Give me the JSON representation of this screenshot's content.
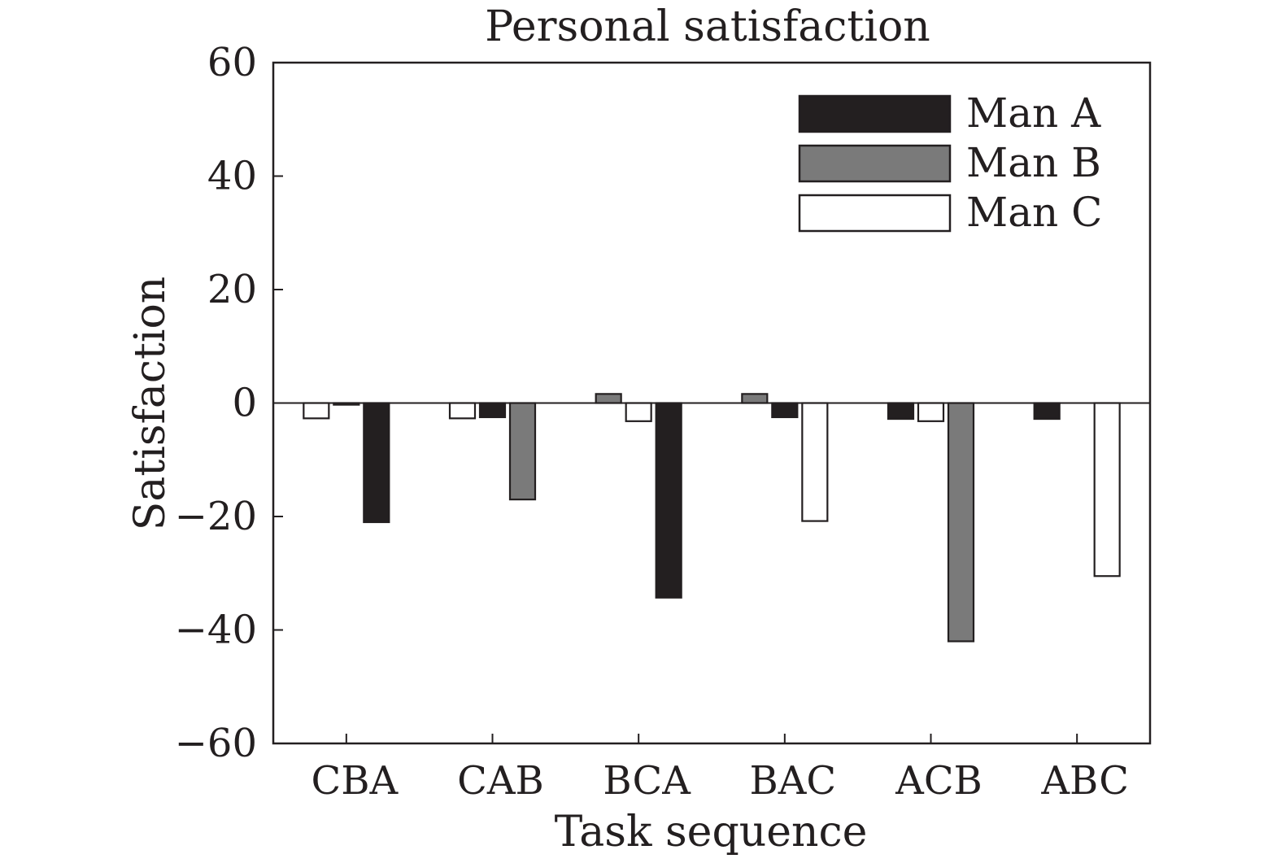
{
  "chart_data": {
    "type": "bar",
    "title": "Personal satisfaction",
    "xlabel": "Task sequence",
    "ylabel": "Satisfaction",
    "ylim": [
      -60,
      60
    ],
    "yticks": [
      60,
      40,
      20,
      0,
      -20,
      -40,
      -60
    ],
    "ytick_labels": [
      "60",
      "40",
      "20",
      "0",
      "−20",
      "−40",
      "−60"
    ],
    "categories": [
      "CBA",
      "CAB",
      "BCA",
      "BAC",
      "ACB",
      "ABC"
    ],
    "grid": false,
    "legend_position": "top-right",
    "series": [
      {
        "name": "Man A",
        "color": "#231f20",
        "values": [
          -21,
          -2.5,
          -34.3,
          -2.5,
          -2.8,
          -2.8
        ]
      },
      {
        "name": "Man B",
        "color": "#7a7a7a",
        "values": [
          -0.3,
          -17,
          1.6,
          1.6,
          -42,
          0
        ]
      },
      {
        "name": "Man C",
        "color": "#ffffff",
        "values": [
          -2.7,
          -2.7,
          -3.2,
          -20.8,
          -3.2,
          -30.5
        ]
      }
    ],
    "bar_order_per_category": [
      [
        "Man C",
        "Man B",
        "Man A"
      ],
      [
        "Man C",
        "Man A",
        "Man B"
      ],
      [
        "Man B",
        "Man C",
        "Man A"
      ],
      [
        "Man B",
        "Man A",
        "Man C"
      ],
      [
        "Man A",
        "Man C",
        "Man B"
      ],
      [
        "Man A",
        "Man B",
        "Man C"
      ]
    ]
  }
}
